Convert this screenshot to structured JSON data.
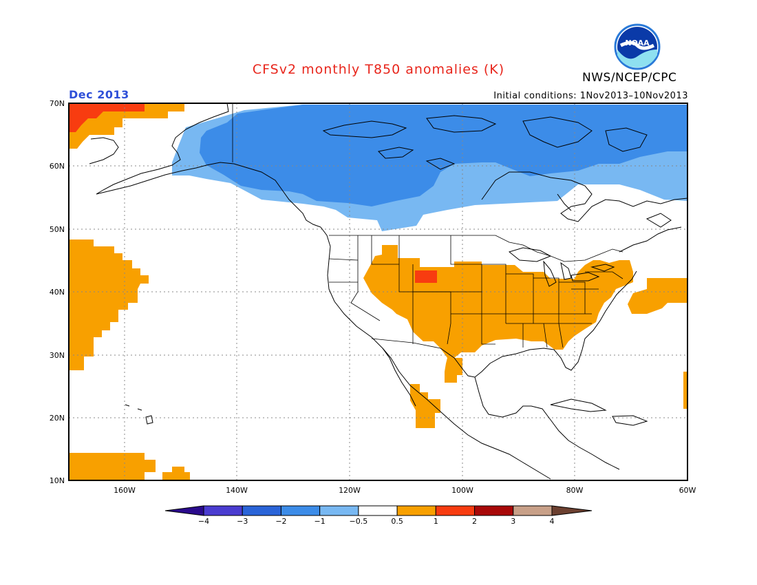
{
  "title": "CFSv2 monthly T850 anomalies (K)",
  "agency": "NWS/NCEP/CPC",
  "logo_text": "NOAA",
  "period": "Dec 2013",
  "initial_conditions": "Initial conditions: 1Nov2013–10Nov2013",
  "lat_labels": [
    "70N",
    "60N",
    "50N",
    "40N",
    "30N",
    "20N",
    "10N"
  ],
  "lon_labels": [
    "160W",
    "140W",
    "120W",
    "100W",
    "80W",
    "60W"
  ],
  "colorbar": {
    "colors": [
      "#2a0a8c",
      "#4a3cd0",
      "#2a64d8",
      "#3c8ce8",
      "#78b8f2",
      "#ffffff",
      "#f8a000",
      "#f83c10",
      "#a80808",
      "#c8a088",
      "#6c4030"
    ],
    "labels": [
      "−4",
      "−3",
      "−2",
      "−1",
      "−0.5",
      "0.5",
      "1",
      "2",
      "3",
      "4"
    ]
  },
  "anomaly_colors": {
    "cold_light": "#78b8f2",
    "cold_mid": "#3c8ce8",
    "warm": "#f8a000",
    "hot": "#f83c10"
  }
}
